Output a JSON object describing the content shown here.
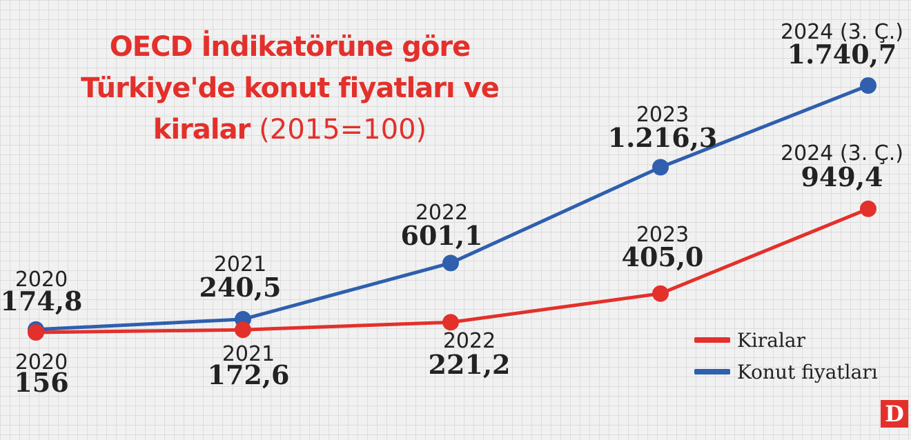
{
  "title": {
    "main": "OECD İndikatörüne göre Türkiye'de konut fiyatları ve kiralar",
    "sub": "(2015=100)"
  },
  "legend": [
    {
      "label": "Kiralar",
      "color": "#e3302b"
    },
    {
      "label": "Konut fiyatları",
      "color": "#2f5fad"
    }
  ],
  "logo": {
    "text": "D",
    "color": "#e3302b"
  },
  "chart_data": {
    "type": "line",
    "title": "OECD İndikatörüne göre Türkiye'de konut fiyatları ve kiralar (2015=100)",
    "categories": [
      "2020",
      "2021",
      "2022",
      "2023",
      "2024 (3. Ç.)"
    ],
    "series": [
      {
        "name": "Konut fiyatları",
        "color": "#2f5fad",
        "values": [
          174.8,
          240.5,
          601.1,
          1216.3,
          1740.7
        ],
        "value_labels": [
          "174,8",
          "240,5",
          "601,1",
          "1.216,3",
          "1.740,7"
        ]
      },
      {
        "name": "Kiralar",
        "color": "#e3302b",
        "values": [
          156,
          172.6,
          221.2,
          405.0,
          949.4
        ],
        "value_labels": [
          "156",
          "172,6",
          "221,2",
          "405,0",
          "949,4"
        ]
      }
    ],
    "grid": true,
    "legend_position": "bottom-right"
  }
}
